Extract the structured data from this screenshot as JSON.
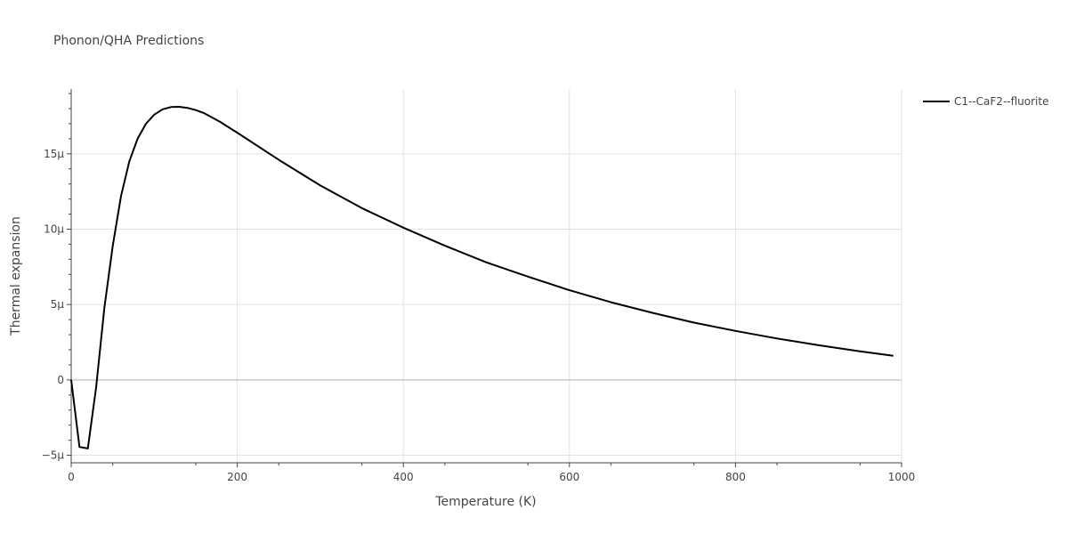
{
  "chart_data": {
    "type": "line",
    "title": "Phonon/QHA Predictions",
    "xlabel": "Temperature (K)",
    "ylabel": "Thermal expansion",
    "xlim": [
      0,
      1000
    ],
    "ylim": [
      -5.5e-06,
      1.93e-05
    ],
    "x_ticks": [
      0,
      200,
      400,
      600,
      800,
      1000
    ],
    "x_tick_labels": [
      "0",
      "200",
      "400",
      "600",
      "800",
      "1000"
    ],
    "y_ticks": [
      -5e-06,
      0,
      5e-06,
      1e-05,
      1.5e-05
    ],
    "y_tick_labels": [
      "−5μ",
      "0",
      "5μ",
      "10μ",
      "15μ"
    ],
    "grid": true,
    "legend_position": "top-right",
    "series": [
      {
        "name": "C1--CaF2--fluorite",
        "color": "#000000",
        "x": [
          0,
          10,
          20,
          30,
          40,
          50,
          60,
          70,
          80,
          90,
          100,
          110,
          120,
          130,
          140,
          150,
          160,
          180,
          200,
          250,
          300,
          350,
          400,
          450,
          500,
          550,
          600,
          650,
          700,
          750,
          800,
          850,
          900,
          950,
          990
        ],
        "y": [
          0,
          -4.45e-06,
          -4.55e-06,
          -5e-07,
          4.8e-06,
          8.9e-06,
          1.22e-05,
          1.45e-05,
          1.6e-05,
          1.7e-05,
          1.76e-05,
          1.795e-05,
          1.81e-05,
          1.812e-05,
          1.805e-05,
          1.79e-05,
          1.77e-05,
          1.71e-05,
          1.64e-05,
          1.46e-05,
          1.29e-05,
          1.14e-05,
          1.01e-05,
          8.9e-06,
          7.8e-06,
          6.85e-06,
          5.95e-06,
          5.15e-06,
          4.45e-06,
          3.8e-06,
          3.25e-06,
          2.75e-06,
          2.3e-06,
          1.9e-06,
          1.6e-06
        ]
      }
    ]
  }
}
